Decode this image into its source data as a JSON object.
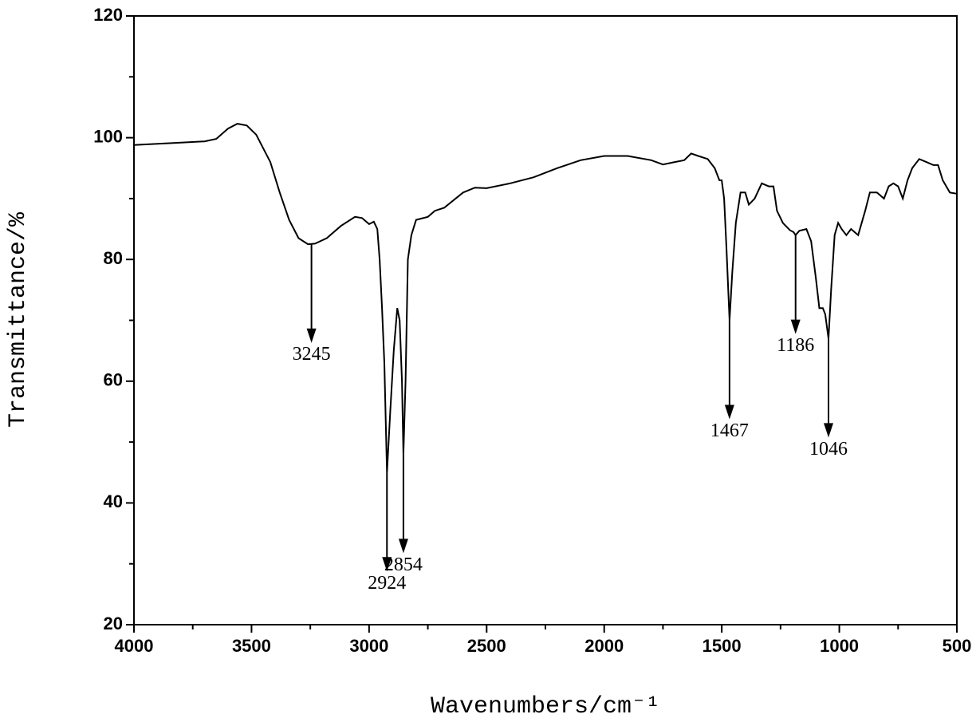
{
  "chart_data": {
    "type": "line",
    "xlabel": "Wavenumbers/cm⁻¹",
    "ylabel": "Transmittance/%",
    "xlim": [
      4000,
      500
    ],
    "ylim": [
      20,
      120
    ],
    "xticks": [
      4000,
      3500,
      3000,
      2500,
      2000,
      1500,
      1000,
      500
    ],
    "xminorticks": [
      3750,
      3250,
      2750,
      2250,
      1750,
      1250,
      750
    ],
    "yticks": [
      20,
      40,
      60,
      80,
      100,
      120
    ],
    "yminorticks": [
      30,
      50,
      70,
      90,
      110
    ],
    "annotations": [
      3245,
      2924,
      2854,
      1467,
      1186,
      1046
    ],
    "series": [
      {
        "color": "#000000",
        "x": [
          4000,
          3800,
          3700,
          3650,
          3600,
          3560,
          3520,
          3480,
          3420,
          3380,
          3340,
          3300,
          3260,
          3230,
          3180,
          3120,
          3060,
          3030,
          3000,
          2980,
          2965,
          2955,
          2945,
          2935,
          2924,
          2910,
          2895,
          2880,
          2870,
          2860,
          2854,
          2845,
          2835,
          2820,
          2800,
          2750,
          2720,
          2680,
          2600,
          2550,
          2500,
          2400,
          2300,
          2200,
          2100,
          2000,
          1900,
          1800,
          1750,
          1700,
          1660,
          1630,
          1600,
          1560,
          1530,
          1510,
          1500,
          1490,
          1480,
          1467,
          1455,
          1440,
          1420,
          1400,
          1385,
          1360,
          1330,
          1300,
          1280,
          1265,
          1240,
          1210,
          1195,
          1186,
          1170,
          1140,
          1120,
          1100,
          1085,
          1070,
          1060,
          1046,
          1035,
          1020,
          1005,
          990,
          970,
          950,
          920,
          890,
          870,
          840,
          810,
          790,
          770,
          750,
          730,
          710,
          690,
          660,
          630,
          600,
          580,
          560,
          530,
          500
        ],
        "values": [
          98.8,
          99.2,
          99.4,
          99.8,
          101.5,
          102.3,
          102.0,
          100.5,
          96,
          91,
          86.5,
          83.5,
          82.5,
          82.6,
          83.5,
          85.5,
          87,
          86.8,
          85.8,
          86.2,
          85,
          80,
          72,
          63,
          45,
          55,
          65,
          72,
          70,
          60,
          48,
          60,
          80,
          84,
          86.5,
          87,
          88,
          88.5,
          91,
          91.8,
          91.7,
          92.5,
          93.5,
          95,
          96.3,
          97,
          97,
          96.3,
          95.6,
          96,
          96.3,
          97.4,
          97,
          96.5,
          95,
          93,
          93,
          90,
          82,
          70,
          78,
          86,
          91,
          91,
          89,
          90,
          92.5,
          92,
          92,
          88,
          86,
          84.8,
          84.5,
          84,
          84.7,
          85,
          83,
          77,
          72,
          72,
          71,
          67,
          75,
          84,
          86,
          85,
          84,
          85,
          84,
          88,
          91,
          91,
          90,
          92,
          92.5,
          92,
          90,
          93,
          95,
          96.5,
          96,
          95.5,
          95.5,
          93,
          91,
          90.8
        ]
      }
    ]
  }
}
